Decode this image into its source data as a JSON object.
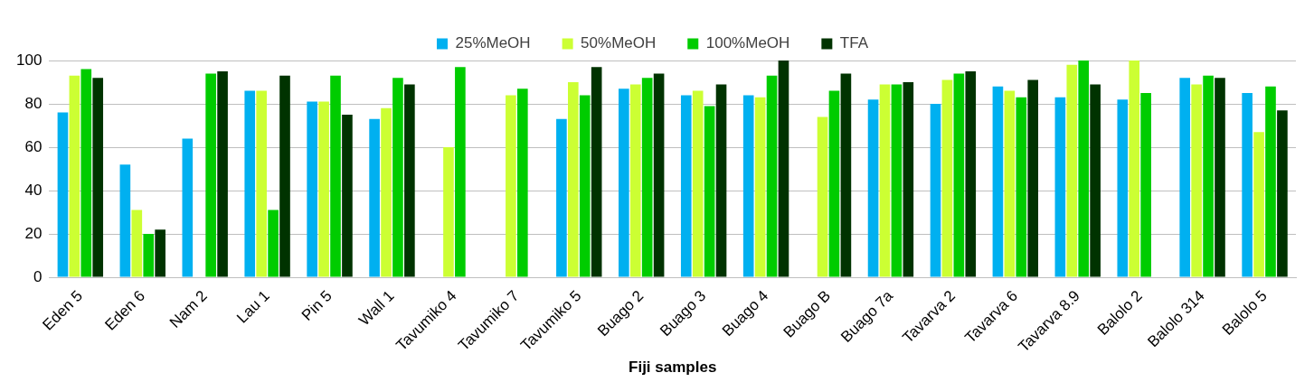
{
  "chart_data": {
    "type": "bar",
    "xlabel": "Fiji samples",
    "categories": [
      "Eden 5",
      "Eden 6",
      "Nam 2",
      "Lau 1",
      "Pin 5",
      "Wall 1",
      "Tavumiko 4",
      "Tavumiko 7",
      "Tavumiko 5",
      "Buago 2",
      "Buago 3",
      "Buago 4",
      "Buago B",
      "Buago 7a",
      "Tavarva 2",
      "Tavarva 6",
      "Tavarva 8.9",
      "Balolo 2",
      "Balolo 314",
      "Balolo 5"
    ],
    "series": [
      {
        "name": "25%MeOH",
        "color": "#00b0f0",
        "values": [
          76,
          52,
          64,
          86,
          81,
          73,
          null,
          null,
          73,
          87,
          84,
          84,
          null,
          82,
          80,
          88,
          83,
          82,
          92,
          85
        ]
      },
      {
        "name": "50%MeOH",
        "color": "#ccff33",
        "values": [
          93,
          31,
          null,
          86,
          81,
          78,
          60,
          84,
          90,
          89,
          86,
          83,
          74,
          89,
          91,
          86,
          98,
          100,
          89,
          67
        ]
      },
      {
        "name": "100%MeOH",
        "color": "#00cc00",
        "values": [
          96,
          20,
          94,
          31,
          93,
          92,
          97,
          87,
          84,
          92,
          79,
          93,
          86,
          89,
          94,
          83,
          100,
          85,
          93,
          88
        ]
      },
      {
        "name": "TFA",
        "color": "#003300",
        "values": [
          92,
          22,
          95,
          93,
          75,
          89,
          null,
          null,
          97,
          94,
          89,
          100,
          94,
          90,
          95,
          91,
          89,
          null,
          92,
          77
        ]
      }
    ],
    "ylim": [
      0,
      100
    ],
    "yticks": [
      0,
      20,
      40,
      60,
      80,
      100
    ],
    "grid": "y",
    "legend": "top"
  }
}
